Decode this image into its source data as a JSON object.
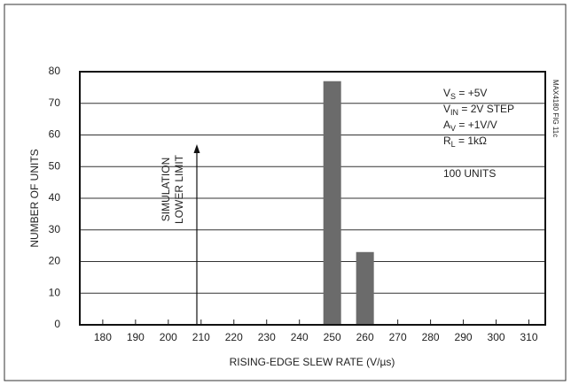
{
  "chart_data": {
    "type": "bar",
    "x_label": "RISING-EDGE SLEW RATE (V/µs)",
    "y_label": "NUMBER OF UNITS",
    "x": [
      250,
      260
    ],
    "values": [
      77,
      23
    ],
    "color": "#6b6b6b",
    "xlim": [
      173,
      315
    ],
    "ylim": [
      0,
      80
    ],
    "xticks": [
      180,
      190,
      200,
      210,
      220,
      230,
      240,
      250,
      260,
      270,
      280,
      290,
      300,
      310
    ],
    "yticks": [
      0,
      10,
      20,
      30,
      40,
      50,
      60,
      70,
      80
    ],
    "grid": true,
    "annotation_lines": [
      "SIMULATION",
      "LOWER LIMIT"
    ],
    "conditions": [
      [
        "V",
        "S",
        " = +5V"
      ],
      [
        "V",
        "IN",
        " = 2V STEP"
      ],
      [
        "A",
        "V",
        " = +1V/V"
      ],
      [
        "R",
        "L",
        " = 1kΩ"
      ]
    ],
    "sample_note": "100 UNITS",
    "figure_id": "MAX4180 FIG 11c"
  }
}
